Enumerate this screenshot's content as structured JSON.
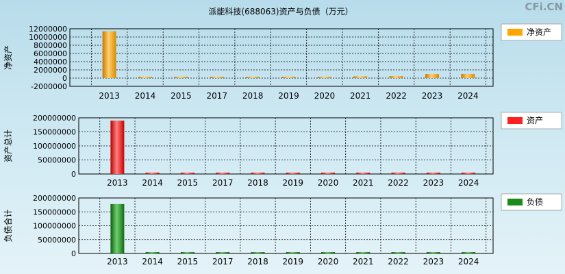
{
  "title": "派能科技(688063)资产与负债（万元）",
  "watermark": "CFi.CN",
  "chart_data": [
    {
      "type": "bar",
      "ylabel": "净资产",
      "legend": "净资产",
      "color": "#ffa500",
      "categories": [
        "2013",
        "2014",
        "2015",
        "2017",
        "2018",
        "2019",
        "2020",
        "2021",
        "2022",
        "2023",
        "2024"
      ],
      "values": [
        11400000,
        30000,
        60000,
        80000,
        120000,
        180000,
        200000,
        420000,
        480000,
        980000,
        1000000
      ],
      "yticks": [
        "12000000",
        "10000000",
        "8000000",
        "6000000",
        "4000000",
        "2000000",
        "0",
        "-2000000"
      ],
      "ylim": [
        -2000000,
        12000000
      ]
    },
    {
      "type": "bar",
      "ylabel": "资产总计",
      "legend": "资产",
      "color": "#ff2020",
      "categories": [
        "2013",
        "2014",
        "2015",
        "2017",
        "2018",
        "2019",
        "2020",
        "2021",
        "2022",
        "2023",
        "2024"
      ],
      "values": [
        190000000,
        1200000,
        1200000,
        1200000,
        1200000,
        1200000,
        1200000,
        1200000,
        1200000,
        1200000,
        1200000
      ],
      "yticks": [
        "200000000",
        "150000000",
        "100000000",
        "50000000",
        "0"
      ],
      "ylim": [
        0,
        200000000
      ]
    },
    {
      "type": "bar",
      "ylabel": "负债合计",
      "legend": "负债",
      "color": "#1a8a1a",
      "categories": [
        "2013",
        "2014",
        "2015",
        "2017",
        "2018",
        "2019",
        "2020",
        "2021",
        "2022",
        "2023",
        "2024"
      ],
      "values": [
        178000000,
        900000,
        900000,
        900000,
        900000,
        900000,
        900000,
        900000,
        900000,
        900000,
        900000
      ],
      "yticks": [
        "200000000",
        "150000000",
        "100000000",
        "50000000",
        "0"
      ],
      "ylim": [
        0,
        200000000
      ]
    }
  ]
}
